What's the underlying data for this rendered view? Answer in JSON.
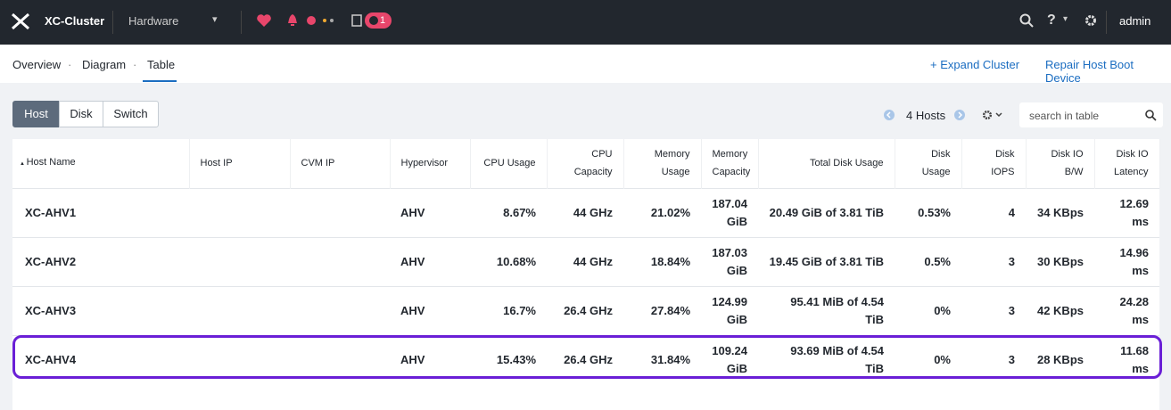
{
  "topbar": {
    "cluster": "XC-Cluster",
    "view": "Hardware",
    "task_badge": "1",
    "help": "?",
    "user": "admin"
  },
  "tabs": [
    "Overview",
    "Diagram",
    "Table"
  ],
  "active_tab": 2,
  "actions": {
    "expand": "Expand Cluster",
    "repair": "Repair Host Boot Device"
  },
  "toggles": [
    "Host",
    "Disk",
    "Switch"
  ],
  "active_toggle": 0,
  "pager": {
    "count": "4 Hosts"
  },
  "search": {
    "placeholder": "search in table"
  },
  "table": {
    "columns": [
      "Host Name",
      "Host IP",
      "CVM IP",
      "Hypervisor",
      "CPU Usage",
      "CPU Capacity",
      "Memory Usage",
      "Memory Capacity",
      "Total Disk Usage",
      "Disk Usage",
      "Disk IOPS",
      "Disk IO B/W",
      "Disk IO Latency"
    ],
    "rows": [
      {
        "name": "XC-AHV1",
        "hypervisor": "AHV",
        "cpu_usage": "8.67%",
        "cpu_capacity": "44 GHz",
        "memory_usage": "21.02%",
        "memory_capacity": "187.04 GiB",
        "total_disk": "20.49 GiB of 3.81 TiB",
        "disk_usage": "0.53%",
        "iops": "4",
        "bw": "34 KBps",
        "latency": "12.69 ms"
      },
      {
        "name": "XC-AHV2",
        "hypervisor": "AHV",
        "cpu_usage": "10.68%",
        "cpu_capacity": "44 GHz",
        "memory_usage": "18.84%",
        "memory_capacity": "187.03 GiB",
        "total_disk": "19.45 GiB of 3.81 TiB",
        "disk_usage": "0.5%",
        "iops": "3",
        "bw": "30 KBps",
        "latency": "14.96 ms"
      },
      {
        "name": "XC-AHV3",
        "hypervisor": "AHV",
        "cpu_usage": "16.7%",
        "cpu_capacity": "26.4 GHz",
        "memory_usage": "27.84%",
        "memory_capacity": "124.99 GiB",
        "total_disk": "95.41 MiB of 4.54 TiB",
        "disk_usage": "0%",
        "iops": "3",
        "bw": "42 KBps",
        "latency": "24.28 ms"
      },
      {
        "name": "XC-AHV4",
        "hypervisor": "AHV",
        "cpu_usage": "15.43%",
        "cpu_capacity": "26.4 GHz",
        "memory_usage": "31.84%",
        "memory_capacity": "109.24 GiB",
        "total_disk": "93.69 MiB of 4.54 TiB",
        "disk_usage": "0%",
        "iops": "3",
        "bw": "28 KBps",
        "latency": "11.68 ms"
      }
    ],
    "highlighted_row": 3
  }
}
